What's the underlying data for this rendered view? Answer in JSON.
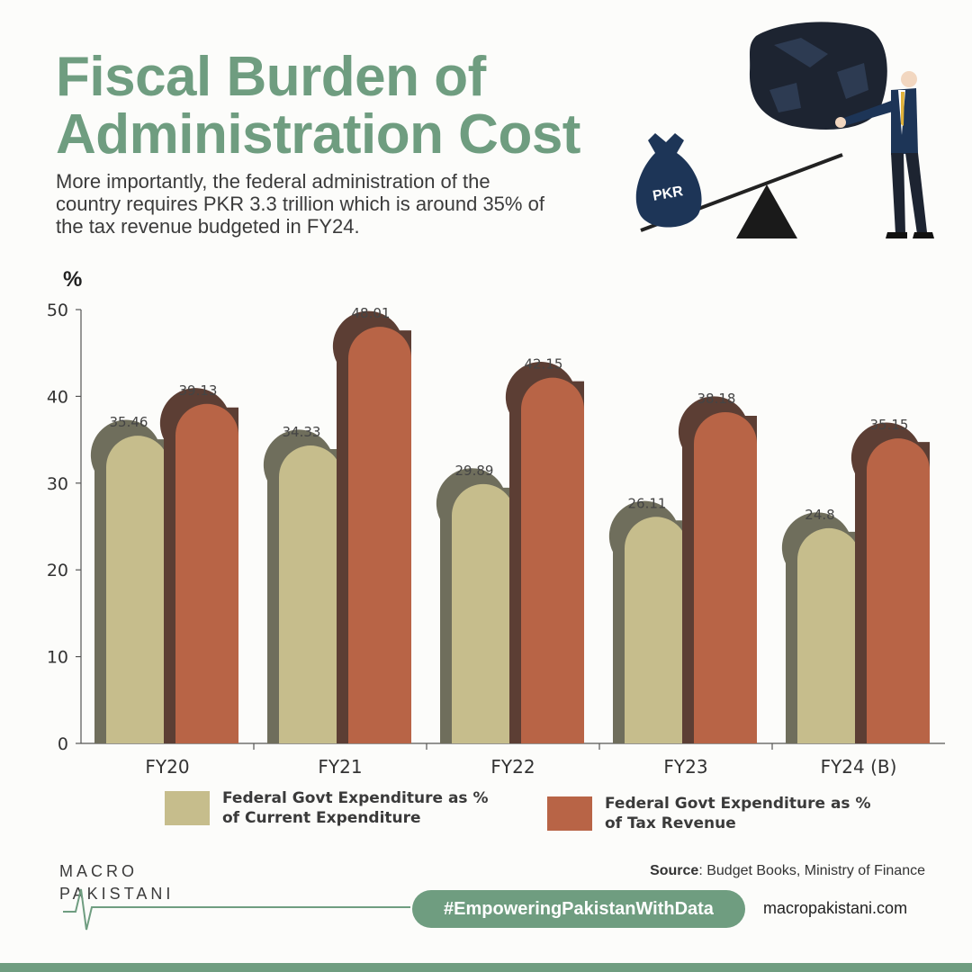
{
  "header": {
    "title": "Fiscal Burden of Administration Cost",
    "subtitle": "More importantly, the federal administration of the country requires PKR 3.3 trillion which is around 35% of the tax revenue budgeted in FY24."
  },
  "illustration": {
    "bag_label": "PKR",
    "icon": "seesaw-burden-illustration"
  },
  "chart_data": {
    "type": "bar",
    "ylabel": "%",
    "ylim": [
      0,
      50
    ],
    "yticks": [
      0,
      10,
      20,
      30,
      40,
      50
    ],
    "grid": false,
    "legend_position": "bottom",
    "categories": [
      "FY20",
      "FY21",
      "FY22",
      "FY23",
      "FY24 (B)"
    ],
    "series": [
      {
        "name": "Federal Govt Expenditure as % of Current Expenditure",
        "color": "#c6bd8c",
        "values": [
          35.46,
          34.33,
          29.89,
          26.11,
          24.8
        ]
      },
      {
        "name": "Federal Govt Expenditure as % of Tax Revenue",
        "color": "#b86446",
        "values": [
          39.13,
          48.01,
          42.15,
          38.18,
          35.15
        ]
      }
    ]
  },
  "legend": {
    "item1": "Federal Govt Expenditure as % of Current Expenditure",
    "item2": "Federal Govt Expenditure as % of Tax Revenue"
  },
  "footer": {
    "logo_line1": "MACRO",
    "logo_line2": "PAKISTANI",
    "source_label": "Source",
    "source_text": ": Budget Books, Ministry of Finance",
    "hashtag": "#EmpoweringPakistanWithData",
    "website": "macropakistani.com"
  },
  "colors": {
    "accent": "#6f9d80",
    "series1": "#c6bd8c",
    "series2": "#b86446"
  }
}
